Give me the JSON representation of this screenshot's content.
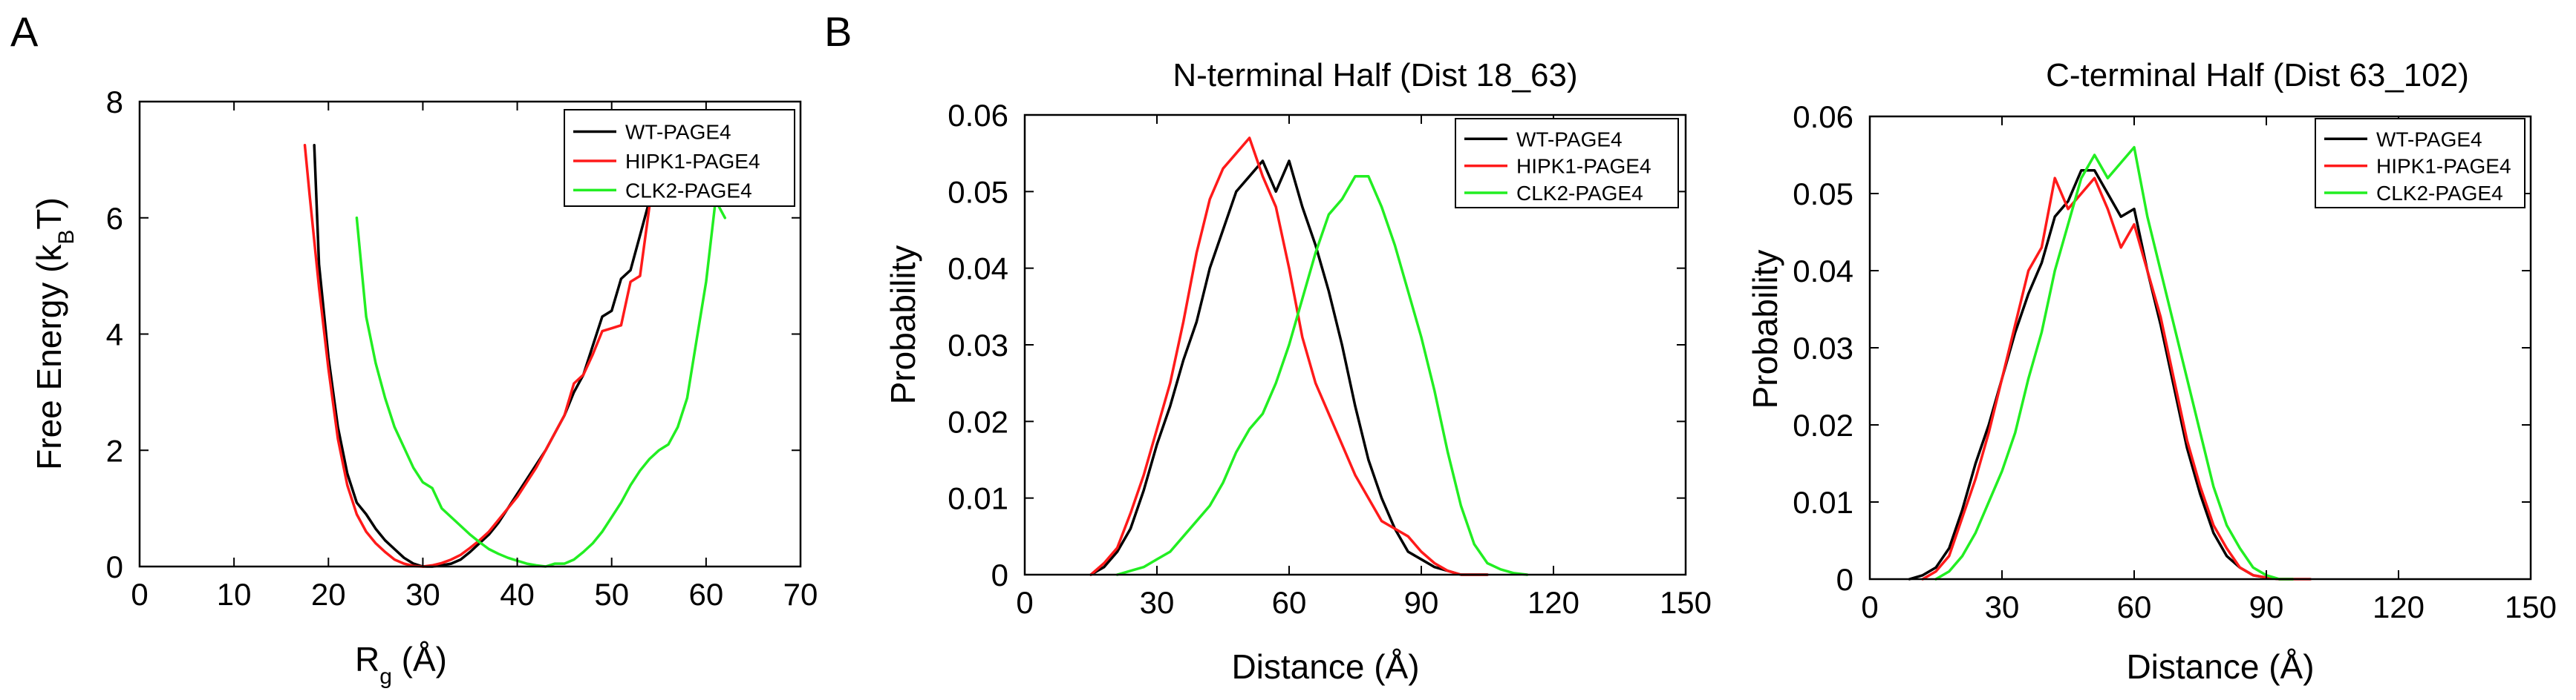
{
  "panel_labels": {
    "a": "A",
    "b": "B"
  },
  "colors": {
    "wt": "#000000",
    "hipk1": "#ff1a1a",
    "clk2": "#22ee22"
  },
  "chart_data": [
    {
      "type": "line",
      "title": "",
      "xlabel_main": "R",
      "xlabel_sub": "g",
      "xlabel_unit": " (Å)",
      "ylabel_main": "Free Energy (k",
      "ylabel_sub": "B",
      "ylabel_end": "T)",
      "xlim": [
        0,
        70
      ],
      "ylim": [
        0,
        8
      ],
      "xticks": [
        0,
        10,
        20,
        30,
        40,
        50,
        60,
        70
      ],
      "yticks": [
        0,
        2,
        4,
        6,
        8
      ],
      "legend": [
        "WT-PAGE4",
        "HIPK1-PAGE4",
        "CLK2-PAGE4"
      ],
      "series": [
        {
          "name": "WT-PAGE4",
          "color": "#000000",
          "x": [
            18.5,
            19,
            20,
            21,
            22,
            23,
            24,
            25,
            26,
            27,
            28,
            29,
            30,
            31,
            32,
            33,
            34,
            35,
            36,
            37,
            38,
            39,
            40,
            41,
            42,
            43,
            44,
            45,
            46,
            47,
            48,
            49,
            50,
            51,
            52,
            53,
            54,
            55
          ],
          "y": [
            7.25,
            5.2,
            3.6,
            2.4,
            1.6,
            1.1,
            0.9,
            0.65,
            0.45,
            0.3,
            0.15,
            0.05,
            0.0,
            0.0,
            0.02,
            0.05,
            0.12,
            0.25,
            0.4,
            0.55,
            0.75,
            1.0,
            1.25,
            1.5,
            1.75,
            2.0,
            2.3,
            2.6,
            3.0,
            3.3,
            3.8,
            4.3,
            4.4,
            4.95,
            5.1,
            5.7,
            6.3,
            7.25
          ]
        },
        {
          "name": "HIPK1-PAGE4",
          "color": "#ff1a1a",
          "x": [
            17.5,
            18,
            19,
            20,
            21,
            22,
            23,
            24,
            25,
            26,
            27,
            28,
            29,
            30,
            31,
            32,
            33,
            34,
            35,
            36,
            37,
            38,
            39,
            40,
            41,
            42,
            43,
            44,
            45,
            46,
            47,
            48,
            49,
            50,
            51,
            52,
            53,
            54,
            55
          ],
          "y": [
            7.25,
            6.4,
            4.8,
            3.4,
            2.2,
            1.4,
            0.9,
            0.6,
            0.4,
            0.25,
            0.12,
            0.05,
            0.01,
            0.0,
            0.02,
            0.06,
            0.12,
            0.2,
            0.32,
            0.45,
            0.6,
            0.8,
            1.0,
            1.2,
            1.45,
            1.7,
            2.0,
            2.3,
            2.6,
            3.15,
            3.3,
            3.65,
            4.05,
            4.1,
            4.15,
            4.9,
            5.0,
            6.2,
            7.25
          ]
        },
        {
          "name": "CLK2-PAGE4",
          "color": "#22ee22",
          "x": [
            23,
            24,
            25,
            26,
            27,
            28,
            29,
            30,
            31,
            32,
            33,
            34,
            35,
            36,
            37,
            38,
            39,
            40,
            41,
            42,
            43,
            44,
            45,
            46,
            47,
            48,
            49,
            50,
            51,
            52,
            53,
            54,
            55,
            56,
            57,
            58,
            59,
            60,
            61,
            62
          ],
          "y": [
            6.0,
            4.3,
            3.5,
            2.9,
            2.4,
            2.05,
            1.7,
            1.45,
            1.35,
            1.0,
            0.85,
            0.7,
            0.55,
            0.42,
            0.3,
            0.22,
            0.15,
            0.1,
            0.05,
            0.02,
            0.0,
            0.05,
            0.05,
            0.12,
            0.25,
            0.4,
            0.6,
            0.85,
            1.1,
            1.4,
            1.65,
            1.85,
            2.0,
            2.1,
            2.4,
            2.9,
            3.9,
            4.9,
            6.3,
            6.0
          ]
        }
      ]
    },
    {
      "type": "line",
      "title": "N-terminal Half (Dist 18_63)",
      "xlabel_main": "Distance (Å)",
      "ylabel_main": "Probability",
      "xlim": [
        0,
        150
      ],
      "ylim": [
        0,
        0.06
      ],
      "xticks": [
        0,
        30,
        60,
        90,
        120,
        150
      ],
      "yticks": [
        "0",
        "0.01",
        "0.02",
        "0.03",
        "0.04",
        "0.05",
        "0.06"
      ],
      "legend": [
        "WT-PAGE4",
        "HIPK1-PAGE4",
        "CLK2-PAGE4"
      ],
      "series": [
        {
          "name": "WT-PAGE4",
          "color": "#000000",
          "x": [
            15,
            18,
            21,
            24,
            27,
            30,
            33,
            36,
            39,
            42,
            45,
            48,
            51,
            54,
            57,
            60,
            63,
            66,
            69,
            72,
            75,
            78,
            81,
            84,
            87,
            90,
            93,
            96,
            99,
            102,
            105
          ],
          "y": [
            0.0,
            0.001,
            0.003,
            0.006,
            0.011,
            0.017,
            0.022,
            0.028,
            0.033,
            0.04,
            0.045,
            0.05,
            0.052,
            0.054,
            0.05,
            0.054,
            0.048,
            0.043,
            0.037,
            0.03,
            0.022,
            0.015,
            0.01,
            0.006,
            0.003,
            0.002,
            0.001,
            0.0005,
            0.0,
            0.0,
            0.0
          ]
        },
        {
          "name": "HIPK1-PAGE4",
          "color": "#ff1a1a",
          "x": [
            15,
            18,
            21,
            24,
            27,
            30,
            33,
            36,
            39,
            42,
            45,
            48,
            51,
            54,
            57,
            60,
            63,
            66,
            69,
            72,
            75,
            78,
            81,
            84,
            87,
            90,
            93,
            96,
            99,
            102,
            105
          ],
          "y": [
            0.0,
            0.0015,
            0.0035,
            0.008,
            0.013,
            0.019,
            0.025,
            0.033,
            0.042,
            0.049,
            0.053,
            0.055,
            0.057,
            0.052,
            0.048,
            0.04,
            0.031,
            0.025,
            0.021,
            0.017,
            0.013,
            0.01,
            0.007,
            0.006,
            0.005,
            0.003,
            0.0015,
            0.0005,
            0.0,
            0.0,
            0.0
          ]
        },
        {
          "name": "CLK2-PAGE4",
          "color": "#22ee22",
          "x": [
            21,
            24,
            27,
            30,
            33,
            36,
            39,
            42,
            45,
            48,
            51,
            54,
            57,
            60,
            63,
            66,
            69,
            72,
            75,
            78,
            81,
            84,
            87,
            90,
            93,
            96,
            99,
            102,
            105,
            108,
            111,
            114
          ],
          "y": [
            0.0,
            0.0005,
            0.001,
            0.002,
            0.003,
            0.005,
            0.007,
            0.009,
            0.012,
            0.016,
            0.019,
            0.021,
            0.025,
            0.03,
            0.036,
            0.042,
            0.047,
            0.049,
            0.052,
            0.052,
            0.048,
            0.043,
            0.037,
            0.031,
            0.024,
            0.016,
            0.009,
            0.004,
            0.0015,
            0.0007,
            0.0002,
            0.0
          ]
        }
      ]
    },
    {
      "type": "line",
      "title": "C-terminal Half (Dist 63_102)",
      "xlabel_main": "Distance (Å)",
      "ylabel_main": "Probability",
      "xlim": [
        0,
        150
      ],
      "ylim": [
        0,
        0.06
      ],
      "xticks": [
        0,
        30,
        60,
        90,
        120,
        150
      ],
      "yticks": [
        "0",
        "0.01",
        "0.02",
        "0.03",
        "0.04",
        "0.05",
        "0.06"
      ],
      "legend": [
        "WT-PAGE4",
        "HIPK1-PAGE4",
        "CLK2-PAGE4"
      ],
      "series": [
        {
          "name": "WT-PAGE4",
          "color": "#000000",
          "x": [
            9,
            12,
            15,
            18,
            21,
            24,
            27,
            30,
            33,
            36,
            39,
            42,
            45,
            48,
            51,
            54,
            57,
            60,
            63,
            66,
            69,
            72,
            75,
            78,
            81,
            84,
            87,
            90,
            93,
            96
          ],
          "y": [
            0.0,
            0.0005,
            0.0015,
            0.004,
            0.009,
            0.015,
            0.02,
            0.026,
            0.032,
            0.037,
            0.041,
            0.047,
            0.049,
            0.053,
            0.053,
            0.05,
            0.047,
            0.048,
            0.04,
            0.033,
            0.025,
            0.017,
            0.011,
            0.006,
            0.003,
            0.0015,
            0.0005,
            0.0002,
            0.0,
            0.0
          ]
        },
        {
          "name": "HIPK1-PAGE4",
          "color": "#ff1a1a",
          "x": [
            12,
            15,
            18,
            21,
            24,
            27,
            30,
            33,
            36,
            39,
            42,
            45,
            48,
            51,
            54,
            57,
            60,
            63,
            66,
            69,
            72,
            75,
            78,
            81,
            84,
            87,
            90,
            93,
            96,
            100
          ],
          "y": [
            0.0,
            0.001,
            0.003,
            0.008,
            0.013,
            0.019,
            0.026,
            0.033,
            0.04,
            0.043,
            0.052,
            0.048,
            0.05,
            0.052,
            0.048,
            0.043,
            0.046,
            0.04,
            0.034,
            0.026,
            0.018,
            0.012,
            0.007,
            0.004,
            0.0015,
            0.0005,
            0.0002,
            0.0,
            0.0,
            0.0
          ]
        },
        {
          "name": "CLK2-PAGE4",
          "color": "#22ee22",
          "x": [
            15,
            18,
            21,
            24,
            27,
            30,
            33,
            36,
            39,
            42,
            45,
            48,
            51,
            54,
            57,
            60,
            63,
            66,
            69,
            72,
            75,
            78,
            81,
            84,
            87,
            90,
            93,
            96
          ],
          "y": [
            0.0,
            0.001,
            0.003,
            0.006,
            0.01,
            0.014,
            0.019,
            0.026,
            0.032,
            0.04,
            0.046,
            0.052,
            0.055,
            0.052,
            0.054,
            0.056,
            0.047,
            0.04,
            0.033,
            0.026,
            0.019,
            0.012,
            0.007,
            0.004,
            0.0015,
            0.0005,
            0.0,
            0.0
          ]
        }
      ]
    }
  ]
}
